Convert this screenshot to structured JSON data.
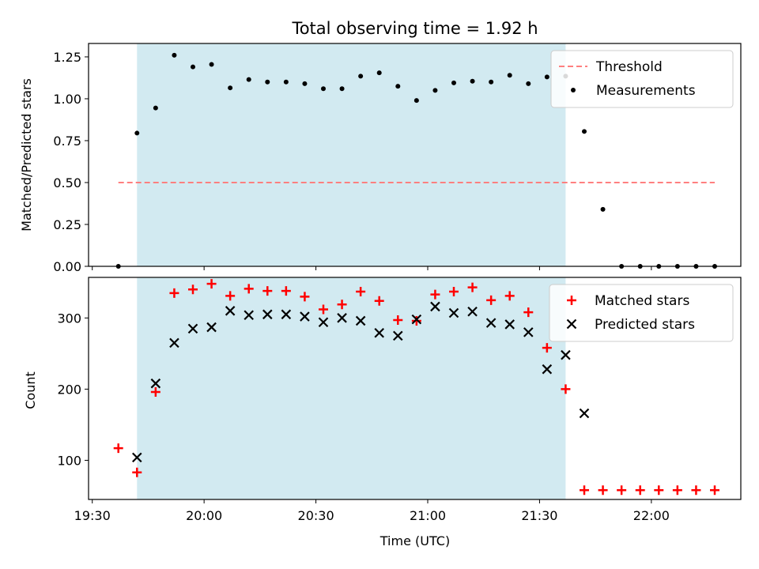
{
  "chart_data": [
    {
      "type": "scatter",
      "title": "Total observing time = 1.92 h",
      "xlabel": "",
      "ylabel": "Matched/Predicted stars",
      "xlim": [
        "19:29",
        "22:24"
      ],
      "ylim": [
        0.0,
        1.33
      ],
      "yticks": [
        0.0,
        0.25,
        0.5,
        0.75,
        1.0,
        1.25
      ],
      "ytick_labels": [
        "0.00",
        "0.25",
        "0.50",
        "0.75",
        "1.00",
        "1.25"
      ],
      "grid": false,
      "legend_position": "top-right",
      "shaded_interval": {
        "start": "19:42",
        "end": "21:37",
        "color": "#add8e6"
      },
      "threshold": {
        "name": "Threshold",
        "value": 0.5,
        "x_start": "19:37",
        "x_end": "22:17",
        "color": "#ff7f7f",
        "style": "dashed"
      },
      "series": [
        {
          "name": "Measurements",
          "marker": "dot",
          "color": "#000000",
          "x": [
            "19:37",
            "19:42",
            "19:47",
            "19:52",
            "19:57",
            "20:02",
            "20:07",
            "20:12",
            "20:17",
            "20:22",
            "20:27",
            "20:32",
            "20:37",
            "20:42",
            "20:47",
            "20:52",
            "20:57",
            "21:02",
            "21:07",
            "21:12",
            "21:17",
            "21:22",
            "21:27",
            "21:32",
            "21:37",
            "21:42",
            "21:47",
            "21:52",
            "21:57",
            "22:02",
            "22:07",
            "22:12",
            "22:17"
          ],
          "values": [
            0.0,
            0.795,
            0.945,
            1.26,
            1.19,
            1.205,
            1.065,
            1.115,
            1.1,
            1.1,
            1.09,
            1.06,
            1.06,
            1.135,
            1.155,
            1.075,
            0.99,
            1.05,
            1.095,
            1.105,
            1.1,
            1.14,
            1.09,
            1.13,
            1.135,
            0.805,
            0.34,
            0.0,
            0.0,
            0.0,
            0.0,
            0.0,
            0.0
          ]
        }
      ]
    },
    {
      "type": "scatter",
      "title": "",
      "xlabel": "Time (UTC)",
      "ylabel": "Count",
      "xlim": [
        "19:29",
        "22:24"
      ],
      "ylim": [
        45,
        357
      ],
      "yticks": [
        100,
        200,
        300
      ],
      "xticks": [
        "19:30",
        "20:00",
        "20:30",
        "21:00",
        "21:30",
        "22:00"
      ],
      "grid": false,
      "legend_position": "top-right",
      "shaded_interval": {
        "start": "19:42",
        "end": "21:37",
        "color": "#add8e6"
      },
      "series": [
        {
          "name": "Matched stars",
          "marker": "plus",
          "color": "#ff0000",
          "x": [
            "19:37",
            "19:42",
            "19:47",
            "19:52",
            "19:57",
            "20:02",
            "20:07",
            "20:12",
            "20:17",
            "20:22",
            "20:27",
            "20:32",
            "20:37",
            "20:42",
            "20:47",
            "20:52",
            "20:57",
            "21:02",
            "21:07",
            "21:12",
            "21:17",
            "21:22",
            "21:27",
            "21:32",
            "21:37",
            "21:42",
            "21:47",
            "21:52",
            "21:57",
            "22:02",
            "22:07",
            "22:12",
            "22:17"
          ],
          "values": [
            117,
            83,
            196,
            335,
            340,
            348,
            331,
            341,
            338,
            338,
            330,
            312,
            319,
            337,
            324,
            297,
            296,
            333,
            337,
            343,
            325,
            331,
            308,
            258,
            200,
            58,
            58,
            58,
            58,
            58,
            58,
            58,
            58
          ]
        },
        {
          "name": "Predicted stars",
          "marker": "x",
          "color": "#000000",
          "x": [
            "19:42",
            "19:47",
            "19:52",
            "19:57",
            "20:02",
            "20:07",
            "20:12",
            "20:17",
            "20:22",
            "20:27",
            "20:32",
            "20:37",
            "20:42",
            "20:47",
            "20:52",
            "20:57",
            "21:02",
            "21:07",
            "21:12",
            "21:17",
            "21:22",
            "21:27",
            "21:32",
            "21:37",
            "21:42"
          ],
          "values": [
            104,
            208,
            265,
            285,
            287,
            310,
            304,
            305,
            305,
            302,
            294,
            300,
            296,
            279,
            275,
            298,
            316,
            307,
            309,
            293,
            291,
            280,
            228,
            248,
            166
          ]
        }
      ]
    }
  ]
}
